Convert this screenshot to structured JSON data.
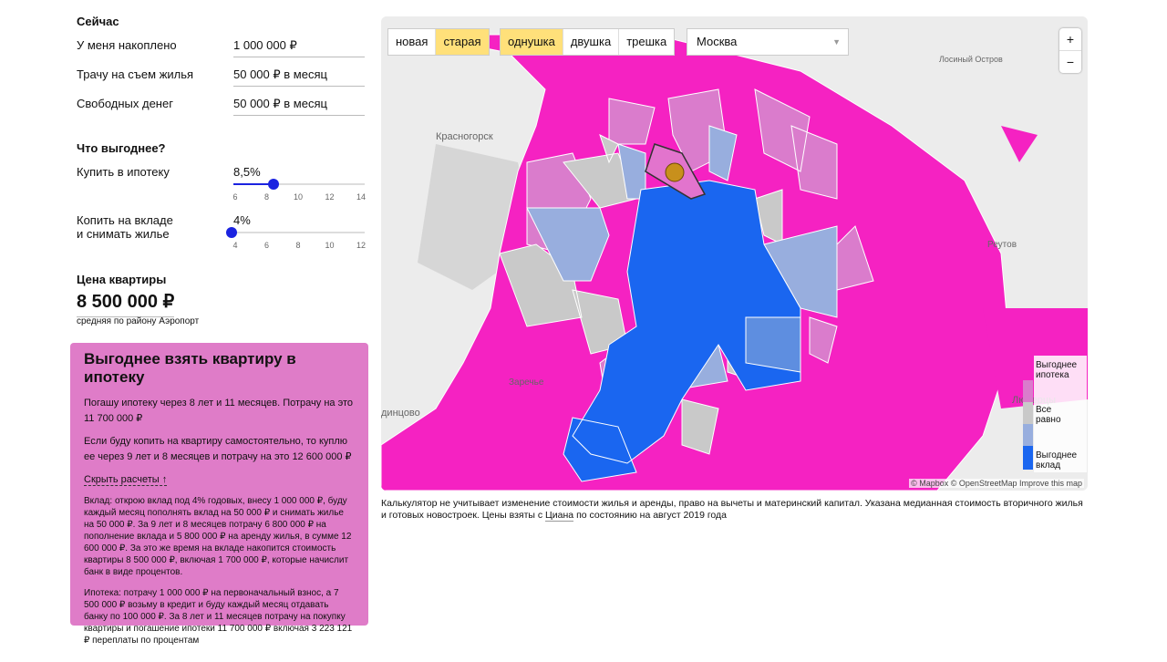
{
  "now": {
    "heading": "Сейчас",
    "fields": [
      {
        "label": "У меня накоплено",
        "value": "1 000 000 ₽"
      },
      {
        "label": "Трачу на съем жилья",
        "value": "50 000 ₽ в месяц"
      },
      {
        "label": "Свободных денег",
        "value": "50 000 ₽ в месяц"
      }
    ]
  },
  "compare": {
    "heading": "Что выгоднее?",
    "sliders": [
      {
        "label": [
          "Купить в ипотеку"
        ],
        "value": "8,5%",
        "ticks": [
          6,
          8,
          10,
          12,
          14
        ]
      },
      {
        "label": [
          "Копить на вкладе",
          "и снимать жилье"
        ],
        "value": "4%",
        "ticks": [
          4,
          6,
          8,
          10,
          12
        ]
      }
    ]
  },
  "price": {
    "heading": "Цена квартиры",
    "value": "8 500 000 ₽",
    "note": "средняя по району Аэропорт"
  },
  "result": {
    "title": "Выгоднее взять квартиру в ипотеку",
    "paragraphs": [
      "Погашу ипотеку через 8 лет и 11 месяцев. Потрачу на это 11 700 000 ₽",
      "Если буду копить на квартиру самостоятельно, то куплю ее через 9 лет и 8 месяцев и потрачу на это 12 600 000 ₽"
    ],
    "toggle": "Скрыть расчеты ↑",
    "details": [
      "Вклад: открою вклад под 4% годовых, внесу 1 000 000 ₽, буду каждый месяц пополнять вклад на 50 000 ₽ и снимать жилье на 50 000 ₽. За 9 лет и 8 месяцев потрачу 6 800 000 ₽ на пополнение вклада и 5 800 000 ₽ на аренду жилья, в сумме 12 600 000 ₽. За это же время на вкладе накопится стоимость квартиры 8 500 000 ₽, включая 1 700 000 ₽, которые начислит банк в виде процентов.",
      "Ипотека: потрачу 1 000 000 ₽ на первоначальный взнос, а 7 500 000 ₽ возьму в кредит и буду каждый месяц отдавать банку по 100 000 ₽. За 8 лет и 11 месяцев потрачу на покупку квартиры и погашение ипотеки 11 700 000 ₽ включая 3 223 121 ₽ переплаты по процентам"
    ]
  },
  "map": {
    "tabs_type": [
      "новая",
      "старая"
    ],
    "tabs_rooms": [
      "однушка",
      "двушка",
      "трешка"
    ],
    "city": "Москва",
    "zoom": [
      "+",
      "−"
    ],
    "places": [
      "Красногорск",
      "Лосиный Остров",
      "Реутов",
      "Заречье",
      "динцово",
      "Люберцы"
    ],
    "legend": [
      "Выгоднее ипотека",
      "Все равно",
      "Выгоднее вклад"
    ],
    "attribution": "© Mapbox © OpenStreetMap Improve this map"
  },
  "footnote": {
    "before": "Калькулятор не учитывает изменение стоимости жилья и аренды, право на вычеты и материнский капитал. Указана медианная стоимость вторичного жилья и готовых новостроек. Цены взяты с ",
    "link": "Циана",
    "after": " по состоянию на август 2019 года"
  }
}
